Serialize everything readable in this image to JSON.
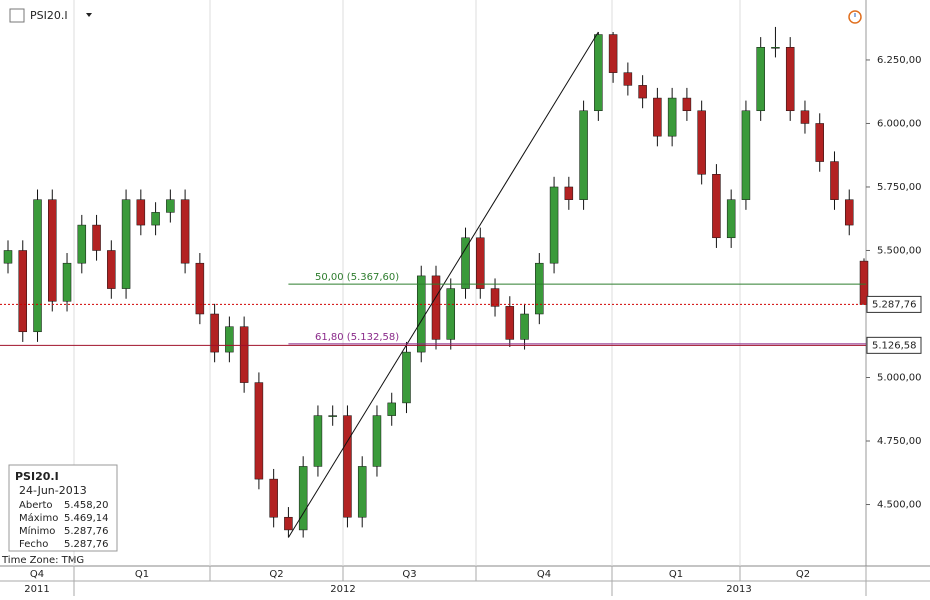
{
  "header": {
    "symbol": "PSI20.I"
  },
  "chart_data": {
    "type": "candlestick",
    "open": [
      5450,
      5500,
      5180,
      5700,
      5300,
      5450,
      5600,
      5500,
      5350,
      5700,
      5600,
      5650,
      5700,
      5450,
      5250,
      5100,
      5200,
      4980,
      4600,
      4450,
      4400,
      4650,
      4850,
      4850,
      4450,
      4650,
      4850,
      4900,
      5100,
      5400,
      5150,
      5350,
      5550,
      5350,
      5280,
      5150,
      5250,
      5450,
      5750,
      5700,
      6050,
      6350,
      6200,
      6150,
      6100,
      5950,
      6100,
      6050,
      5800,
      5550,
      5700,
      6050,
      6300,
      6300,
      6050,
      6000,
      5850,
      5700,
      5458.2
    ],
    "high": [
      5540,
      5540,
      5740,
      5740,
      5490,
      5640,
      5640,
      5540,
      5740,
      5740,
      5690,
      5740,
      5740,
      5490,
      5290,
      5240,
      5240,
      5020,
      4640,
      4490,
      4690,
      4890,
      4890,
      4890,
      4690,
      4890,
      4940,
      5140,
      5440,
      5440,
      5390,
      5590,
      5590,
      5390,
      5320,
      5290,
      5490,
      5790,
      5790,
      6090,
      6360,
      6360,
      6240,
      6190,
      6140,
      6140,
      6140,
      6090,
      5840,
      5740,
      6090,
      6340,
      6380,
      6340,
      6090,
      6040,
      5890,
      5740,
      5469.14
    ],
    "low": [
      5410,
      5140,
      5140,
      5260,
      5260,
      5410,
      5460,
      5310,
      5310,
      5560,
      5560,
      5610,
      5410,
      5210,
      5060,
      5060,
      4940,
      4560,
      4410,
      4370,
      4370,
      4610,
      4810,
      4410,
      4410,
      4610,
      4810,
      4860,
      5060,
      5110,
      5110,
      5310,
      5310,
      5240,
      5120,
      5110,
      5210,
      5410,
      5660,
      5660,
      6010,
      6160,
      6110,
      6060,
      5910,
      5910,
      6010,
      5760,
      5510,
      5510,
      5660,
      6010,
      6260,
      6010,
      5960,
      5810,
      5660,
      5560,
      5287.76
    ],
    "close": [
      5500,
      5180,
      5700,
      5300,
      5450,
      5600,
      5500,
      5350,
      5700,
      5600,
      5650,
      5700,
      5450,
      5250,
      5100,
      5200,
      4980,
      4600,
      4450,
      4400,
      4650,
      4850,
      4850,
      4450,
      4650,
      4850,
      4900,
      5100,
      5400,
      5150,
      5350,
      5550,
      5350,
      5280,
      5150,
      5250,
      5450,
      5750,
      5700,
      6050,
      6350,
      6200,
      6150,
      6100,
      5950,
      6100,
      6050,
      5800,
      5550,
      5700,
      6050,
      6300,
      6300,
      6050,
      6000,
      5850,
      5700,
      5600,
      5287.76
    ],
    "up_color": "#3a9a3a",
    "down_color": "#b22222",
    "ylim": [
      4258,
      6486
    ],
    "yticks": [
      {
        "value": 4500,
        "label": "4.500,00"
      },
      {
        "value": 4750,
        "label": "4.750,00"
      },
      {
        "value": 5000,
        "label": "5.000,00"
      },
      {
        "value": 5500,
        "label": "5.500,00"
      },
      {
        "value": 5750,
        "label": "5.750,00"
      },
      {
        "value": 6000,
        "label": "6.000,00"
      },
      {
        "value": 6250,
        "label": "6.250,00"
      }
    ],
    "trendline": {
      "start": [
        19,
        4370
      ],
      "end": [
        40,
        6360
      ]
    },
    "fib_levels": [
      {
        "value": 5367.6,
        "label": "50,00 (5.367,60)",
        "color": "#2e7d2e"
      },
      {
        "value": 5132.58,
        "label": "61,80 (5.132,58)",
        "color": "#8a2a8a"
      }
    ],
    "price_lines": [
      {
        "value": 5287.76,
        "label": "5.287,76",
        "color": "#d00000",
        "dashed": true
      },
      {
        "value": 5126.58,
        "label": "5.126,58",
        "color": "#a0102a",
        "dashed": false
      }
    ],
    "quarters": [
      "Q4",
      "Q1",
      "Q2",
      "Q3",
      "Q4",
      "Q1",
      "Q2"
    ],
    "years": [
      "2011",
      "2012",
      "2013"
    ]
  },
  "info": {
    "symbol": "PSI20.I",
    "date": "24-Jun-2013",
    "rows": [
      [
        "Aberto",
        "5.458,20"
      ],
      [
        "Máximo",
        "5.469,14"
      ],
      [
        "Mínimo",
        "5.287,76"
      ],
      [
        "Fecho",
        "5.287,76"
      ]
    ]
  },
  "footer": {
    "timezone": "Time Zone: TMG"
  }
}
